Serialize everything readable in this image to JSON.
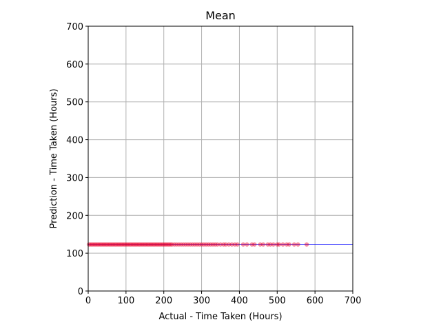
{
  "chart_data": {
    "type": "scatter",
    "title": "Mean",
    "xlabel": "Actual - Time Taken (Hours)",
    "ylabel": "Prediction - Time Taken (Hours)",
    "xlim": [
      0,
      700
    ],
    "ylim": [
      0,
      700
    ],
    "xticks": [
      "0",
      "100",
      "200",
      "300",
      "400",
      "500",
      "600",
      "700"
    ],
    "yticks": [
      "0",
      "100",
      "200",
      "300",
      "400",
      "500",
      "600",
      "700"
    ],
    "grid": true,
    "reference_line": {
      "y": 123,
      "color": "#0000ff"
    },
    "series": [
      {
        "color": "#e8002a",
        "points": [
          [
            2,
            123
          ],
          [
            6,
            123
          ],
          [
            10,
            123
          ],
          [
            14,
            123
          ],
          [
            18,
            123
          ],
          [
            22,
            123
          ],
          [
            26,
            123
          ],
          [
            30,
            123
          ],
          [
            34,
            123
          ],
          [
            38,
            123
          ],
          [
            42,
            123
          ],
          [
            46,
            123
          ],
          [
            50,
            123
          ],
          [
            54,
            123
          ],
          [
            58,
            123
          ],
          [
            62,
            123
          ],
          [
            66,
            123
          ],
          [
            70,
            123
          ],
          [
            74,
            123
          ],
          [
            78,
            123
          ],
          [
            82,
            123
          ],
          [
            86,
            123
          ],
          [
            90,
            123
          ],
          [
            94,
            123
          ],
          [
            98,
            123
          ],
          [
            102,
            123
          ],
          [
            106,
            123
          ],
          [
            110,
            123
          ],
          [
            114,
            123
          ],
          [
            118,
            123
          ],
          [
            122,
            123
          ],
          [
            126,
            123
          ],
          [
            130,
            123
          ],
          [
            134,
            123
          ],
          [
            138,
            123
          ],
          [
            142,
            123
          ],
          [
            146,
            123
          ],
          [
            150,
            123
          ],
          [
            154,
            123
          ],
          [
            158,
            123
          ],
          [
            162,
            123
          ],
          [
            166,
            123
          ],
          [
            170,
            123
          ],
          [
            174,
            123
          ],
          [
            178,
            123
          ],
          [
            182,
            123
          ],
          [
            186,
            123
          ],
          [
            190,
            123
          ],
          [
            194,
            123
          ],
          [
            198,
            123
          ],
          [
            202,
            123
          ],
          [
            206,
            123
          ],
          [
            210,
            123
          ],
          [
            214,
            123
          ],
          [
            218,
            123
          ],
          [
            222,
            123
          ],
          [
            228,
            123
          ],
          [
            234,
            123
          ],
          [
            240,
            123
          ],
          [
            246,
            123
          ],
          [
            252,
            123
          ],
          [
            258,
            123
          ],
          [
            264,
            123
          ],
          [
            270,
            123
          ],
          [
            276,
            123
          ],
          [
            282,
            123
          ],
          [
            288,
            123
          ],
          [
            294,
            123
          ],
          [
            300,
            123
          ],
          [
            306,
            123
          ],
          [
            312,
            123
          ],
          [
            318,
            123
          ],
          [
            324,
            123
          ],
          [
            330,
            123
          ],
          [
            336,
            123
          ],
          [
            342,
            123
          ],
          [
            350,
            123
          ],
          [
            358,
            123
          ],
          [
            364,
            123
          ],
          [
            372,
            123
          ],
          [
            380,
            123
          ],
          [
            388,
            123
          ],
          [
            395,
            123
          ],
          [
            410,
            123
          ],
          [
            420,
            123
          ],
          [
            433,
            123
          ],
          [
            440,
            123
          ],
          [
            455,
            123
          ],
          [
            463,
            123
          ],
          [
            475,
            123
          ],
          [
            482,
            123
          ],
          [
            490,
            123
          ],
          [
            500,
            123
          ],
          [
            505,
            123
          ],
          [
            515,
            123
          ],
          [
            525,
            123
          ],
          [
            532,
            123
          ],
          [
            545,
            123
          ],
          [
            555,
            123
          ],
          [
            578,
            123
          ]
        ]
      }
    ]
  }
}
